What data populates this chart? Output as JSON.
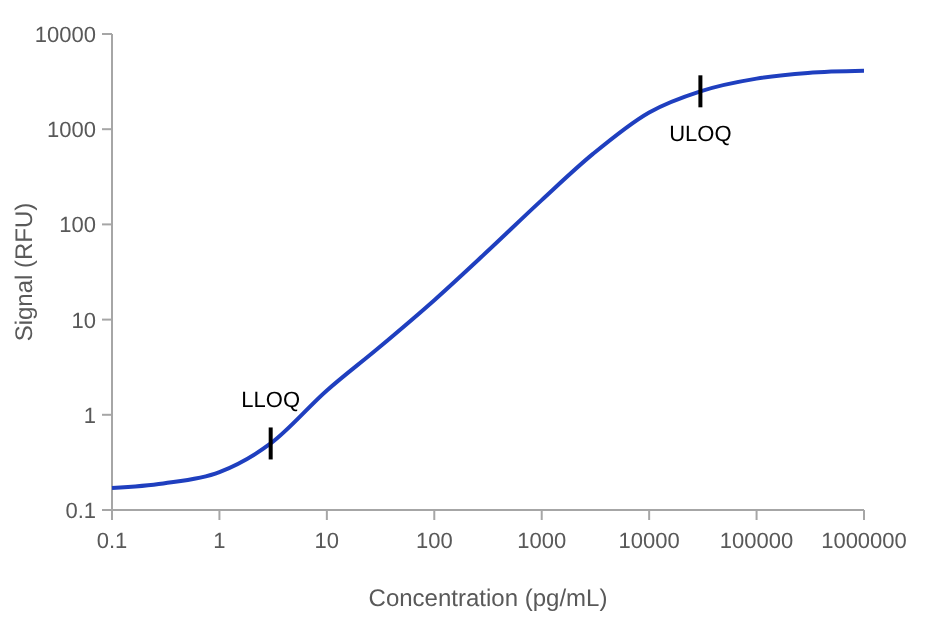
{
  "chart_data": {
    "type": "line",
    "xlabel": "Concentration (pg/mL)",
    "ylabel": "Signal (RFU)",
    "log": "xy",
    "x": [
      0.1,
      0.3,
      1,
      3,
      10,
      30,
      100,
      300,
      1000,
      3000,
      10000,
      30000,
      100000,
      300000,
      1000000
    ],
    "series": [
      {
        "color": "#1f3fbf",
        "values": [
          0.17,
          0.19,
          0.25,
          0.5,
          1.8,
          5,
          16,
          50,
          180,
          550,
          1500,
          2500,
          3400,
          3900,
          4100
        ]
      }
    ],
    "xlim": [
      0.1,
      1000000
    ],
    "ylim": [
      0.1,
      10000
    ],
    "xticks": [
      0.1,
      1,
      10,
      100,
      1000,
      10000,
      100000,
      1000000
    ],
    "yticks": [
      0.1,
      1,
      10,
      100,
      1000,
      10000
    ],
    "annotations": [
      {
        "text": "LLOQ",
        "x": 3,
        "y": 0.5
      },
      {
        "text": "ULOQ",
        "x": 30000,
        "y": 2500
      }
    ],
    "grid": false,
    "marker": "none",
    "line_style": "solid"
  }
}
